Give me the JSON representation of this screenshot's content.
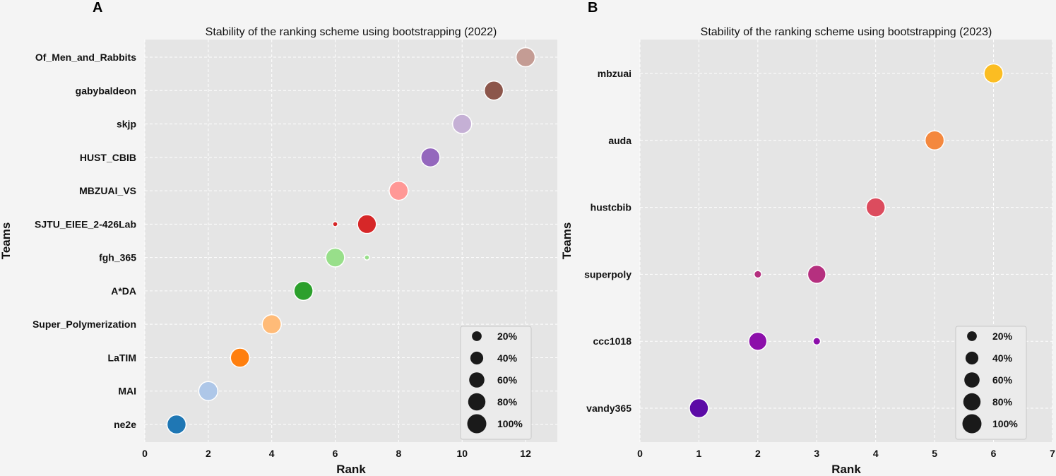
{
  "chart_data": [
    {
      "type": "scatter",
      "panel_label": "A",
      "title": "Stability of the ranking scheme using bootstrapping (2022)",
      "xlabel": "Rank",
      "ylabel": "Teams",
      "xlim": [
        0,
        13
      ],
      "xticks": [
        0,
        2,
        4,
        6,
        8,
        10,
        12
      ],
      "grid": true,
      "teams": [
        "ne2e",
        "MAI",
        "LaTIM",
        "Super_Polymerization",
        "A*DA",
        "fgh_365",
        "SJTU_EIEE_2-426Lab",
        "MBZUAI_VS",
        "HUST_CBIB",
        "skjp",
        "gabybaldeon",
        "Of_Men_and_Rabbits"
      ],
      "points": [
        {
          "team": "ne2e",
          "rank": 1,
          "pct": 100,
          "color": "#1f77b4"
        },
        {
          "team": "MAI",
          "rank": 2,
          "pct": 100,
          "color": "#aec7e8"
        },
        {
          "team": "LaTIM",
          "rank": 3,
          "pct": 100,
          "color": "#ff7f0e"
        },
        {
          "team": "Super_Polymerization",
          "rank": 4,
          "pct": 100,
          "color": "#ffbb78"
        },
        {
          "team": "A*DA",
          "rank": 5,
          "pct": 100,
          "color": "#2ca02c"
        },
        {
          "team": "fgh_365",
          "rank": 6,
          "pct": 97,
          "color": "#98df8a"
        },
        {
          "team": "fgh_365",
          "rank": 7,
          "pct": 3,
          "color": "#98df8a"
        },
        {
          "team": "SJTU_EIEE_2-426Lab",
          "rank": 6,
          "pct": 3,
          "color": "#d62728"
        },
        {
          "team": "SJTU_EIEE_2-426Lab",
          "rank": 7,
          "pct": 97,
          "color": "#d62728"
        },
        {
          "team": "MBZUAI_VS",
          "rank": 8,
          "pct": 100,
          "color": "#ff9896"
        },
        {
          "team": "HUST_CBIB",
          "rank": 9,
          "pct": 100,
          "color": "#9467bd"
        },
        {
          "team": "skjp",
          "rank": 10,
          "pct": 100,
          "color": "#c5b0d5"
        },
        {
          "team": "gabybaldeon",
          "rank": 11,
          "pct": 100,
          "color": "#8c564b"
        },
        {
          "team": "Of_Men_and_Rabbits",
          "rank": 12,
          "pct": 100,
          "color": "#c49c94"
        }
      ],
      "legend": {
        "placement": "bottom-right",
        "entries": [
          20,
          40,
          60,
          80,
          100
        ],
        "labels": [
          "20%",
          "40%",
          "60%",
          "80%",
          "100%"
        ]
      }
    },
    {
      "type": "scatter",
      "panel_label": "B",
      "title": "Stability of the ranking scheme using bootstrapping (2023)",
      "xlabel": "Rank",
      "ylabel": "Teams",
      "xlim": [
        0,
        7
      ],
      "xticks": [
        0,
        1,
        2,
        3,
        4,
        5,
        6,
        7
      ],
      "grid": true,
      "teams": [
        "vandy365",
        "ccc1018",
        "superpoly",
        "hustcbib",
        "auda",
        "mbzuai"
      ],
      "points": [
        {
          "team": "vandy365",
          "rank": 1,
          "pct": 100,
          "color": "#5c0aa6"
        },
        {
          "team": "ccc1018",
          "rank": 2,
          "pct": 90,
          "color": "#8c0faa"
        },
        {
          "team": "ccc1018",
          "rank": 3,
          "pct": 10,
          "color": "#8c0faa"
        },
        {
          "team": "superpoly",
          "rank": 2,
          "pct": 10,
          "color": "#b5307f"
        },
        {
          "team": "superpoly",
          "rank": 3,
          "pct": 90,
          "color": "#b5307f"
        },
        {
          "team": "hustcbib",
          "rank": 4,
          "pct": 100,
          "color": "#dc4c5e"
        },
        {
          "team": "auda",
          "rank": 5,
          "pct": 100,
          "color": "#f4883e"
        },
        {
          "team": "mbzuai",
          "rank": 6,
          "pct": 100,
          "color": "#fbbd22"
        }
      ],
      "legend": {
        "placement": "bottom-right",
        "entries": [
          20,
          40,
          60,
          80,
          100
        ],
        "labels": [
          "20%",
          "40%",
          "60%",
          "80%",
          "100%"
        ]
      }
    }
  ]
}
